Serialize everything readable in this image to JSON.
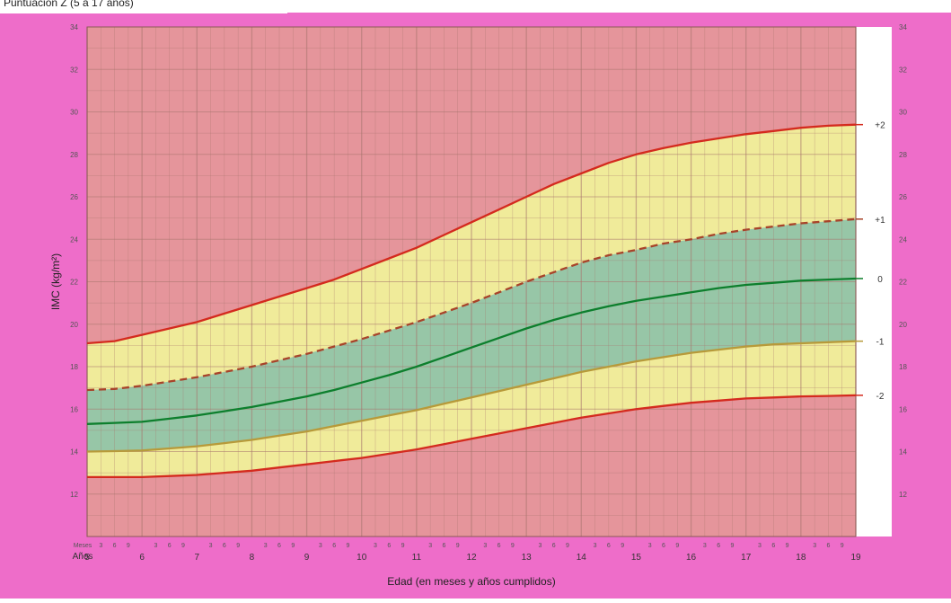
{
  "caption": "Puntuación Z (5 a 17 años)",
  "chart_data": {
    "type": "line",
    "title": "Puntuación Z (5 a 17 años)",
    "xlabel": "Edad (en meses y años cumplidos)",
    "ylabel": "IMC (kg/m²)",
    "xlim": [
      5,
      19
    ],
    "ylim": [
      10,
      34
    ],
    "row_labels": {
      "months": "Meses",
      "years": "Años"
    },
    "year_ticks": [
      "5",
      "6",
      "7",
      "8",
      "9",
      "10",
      "11",
      "12",
      "13",
      "14",
      "15",
      "16",
      "17",
      "18",
      "19"
    ],
    "month_ticks": [
      "3",
      "6",
      "9"
    ],
    "y_ticks": [
      12,
      14,
      16,
      18,
      20,
      22,
      24,
      26,
      28,
      30,
      32,
      34
    ],
    "x": [
      5,
      5.5,
      6,
      6.5,
      7,
      7.5,
      8,
      8.5,
      9,
      9.5,
      10,
      10.5,
      11,
      11.5,
      12,
      12.5,
      13,
      13.5,
      14,
      14.5,
      15,
      15.5,
      16,
      16.5,
      17,
      17.5,
      18,
      18.5,
      19
    ],
    "series": [
      {
        "name": "+2",
        "color": "#d42a1e",
        "style": "solid",
        "values": [
          19.1,
          19.2,
          19.5,
          19.8,
          20.1,
          20.5,
          20.9,
          21.3,
          21.7,
          22.1,
          22.6,
          23.1,
          23.6,
          24.2,
          24.8,
          25.4,
          26.0,
          26.6,
          27.1,
          27.6,
          28.0,
          28.3,
          28.55,
          28.75,
          28.95,
          29.1,
          29.25,
          29.35,
          29.4
        ]
      },
      {
        "name": "+1",
        "color": "#a8432a",
        "style": "dashed",
        "values": [
          16.9,
          16.95,
          17.1,
          17.3,
          17.5,
          17.75,
          18.0,
          18.3,
          18.6,
          18.95,
          19.3,
          19.7,
          20.1,
          20.55,
          21.0,
          21.5,
          22.0,
          22.45,
          22.9,
          23.25,
          23.5,
          23.8,
          24.0,
          24.25,
          24.45,
          24.6,
          24.75,
          24.85,
          24.95
        ]
      },
      {
        "name": "0",
        "color": "#0d7f2d",
        "style": "solid",
        "values": [
          15.3,
          15.35,
          15.4,
          15.55,
          15.7,
          15.9,
          16.1,
          16.35,
          16.6,
          16.9,
          17.25,
          17.6,
          18.0,
          18.45,
          18.9,
          19.35,
          19.8,
          20.2,
          20.55,
          20.85,
          21.1,
          21.3,
          21.5,
          21.7,
          21.85,
          21.95,
          22.05,
          22.1,
          22.15
        ]
      },
      {
        "name": "-1",
        "color": "#b79a3a",
        "style": "solid",
        "values": [
          14.0,
          14.02,
          14.05,
          14.15,
          14.25,
          14.4,
          14.55,
          14.75,
          14.95,
          15.2,
          15.45,
          15.7,
          15.95,
          16.25,
          16.55,
          16.85,
          17.15,
          17.45,
          17.75,
          18.0,
          18.25,
          18.45,
          18.65,
          18.8,
          18.95,
          19.05,
          19.1,
          19.15,
          19.2
        ]
      },
      {
        "name": "-2",
        "color": "#d42a1e",
        "style": "solid",
        "values": [
          12.8,
          12.8,
          12.8,
          12.85,
          12.9,
          13.0,
          13.1,
          13.25,
          13.4,
          13.55,
          13.7,
          13.9,
          14.1,
          14.35,
          14.6,
          14.85,
          15.1,
          15.35,
          15.6,
          15.8,
          16.0,
          16.15,
          16.3,
          16.4,
          16.5,
          16.55,
          16.6,
          16.62,
          16.65
        ]
      }
    ],
    "zone_colors": {
      "outer": "#e5959b",
      "between_1_2": "#f0eb9a",
      "between_minus1_plus1": "#97c6a7",
      "frame": "#ee6dc9",
      "grid": "#a8746e"
    }
  }
}
